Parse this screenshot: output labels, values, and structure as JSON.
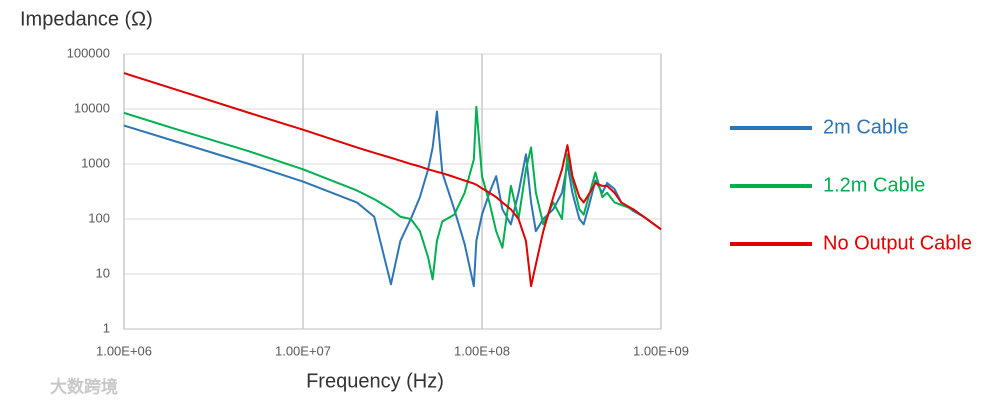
{
  "chart_data": {
    "type": "line",
    "y_title": "Impedance (Ω)",
    "x_title": "Frequency (Hz)",
    "watermark": "大数跨境",
    "xscale": "log",
    "yscale": "log",
    "grid": true,
    "legend_position": "right",
    "xlim": [
      1000000,
      1000000000
    ],
    "ylim": [
      1,
      100000
    ],
    "xticks": [
      {
        "value": 1000000,
        "label": "1.00E+06"
      },
      {
        "value": 10000000,
        "label": "1.00E+07"
      },
      {
        "value": 100000000,
        "label": "1.00E+08"
      },
      {
        "value": 1000000000,
        "label": "1.00E+09"
      }
    ],
    "yticks": [
      1,
      10,
      100,
      1000,
      10000,
      100000
    ],
    "x": [
      1000000,
      2000000,
      5000000,
      10000000,
      20000000,
      25000000,
      31000000,
      35000000,
      40000000,
      45000000,
      50000000,
      53000000,
      56000000,
      60000000,
      70000000,
      80000000,
      90000000,
      93000000,
      100000000,
      110000000,
      120000000,
      130000000,
      145000000,
      160000000,
      176000000,
      188000000,
      200000000,
      220000000,
      250000000,
      280000000,
      300000000,
      320000000,
      350000000,
      370000000,
      400000000,
      430000000,
      470000000,
      500000000,
      550000000,
      600000000,
      700000000,
      800000000,
      1000000000
    ],
    "series": [
      {
        "name": "2m Cable",
        "color": "#2e75b6",
        "values": [
          5000,
          2500,
          1000,
          480,
          200,
          110,
          6.5,
          40,
          100,
          250,
          800,
          2000,
          9000,
          700,
          150,
          35,
          6,
          40,
          120,
          300,
          600,
          150,
          80,
          300,
          1500,
          200,
          60,
          100,
          150,
          300,
          1000,
          300,
          100,
          80,
          200,
          500,
          300,
          450,
          350,
          200,
          140,
          110,
          65
        ]
      },
      {
        "name": "1.2m Cable",
        "color": "#00b050",
        "values": [
          8500,
          4200,
          1700,
          800,
          330,
          230,
          150,
          110,
          100,
          60,
          20,
          8,
          40,
          90,
          120,
          300,
          1200,
          11000,
          600,
          200,
          60,
          30,
          400,
          100,
          800,
          2000,
          300,
          80,
          200,
          100,
          1500,
          500,
          150,
          120,
          300,
          700,
          250,
          300,
          200,
          180,
          150,
          110,
          65
        ]
      },
      {
        "name": "No Output Cable",
        "color": "#e00000",
        "values": [
          45000,
          22000,
          8500,
          4200,
          2000,
          1600,
          1300,
          1150,
          1000,
          900,
          800,
          760,
          720,
          680,
          580,
          500,
          440,
          420,
          360,
          300,
          250,
          200,
          150,
          100,
          40,
          6,
          15,
          60,
          250,
          800,
          2200,
          600,
          250,
          200,
          300,
          450,
          400,
          400,
          300,
          200,
          150,
          110,
          65
        ]
      }
    ]
  }
}
